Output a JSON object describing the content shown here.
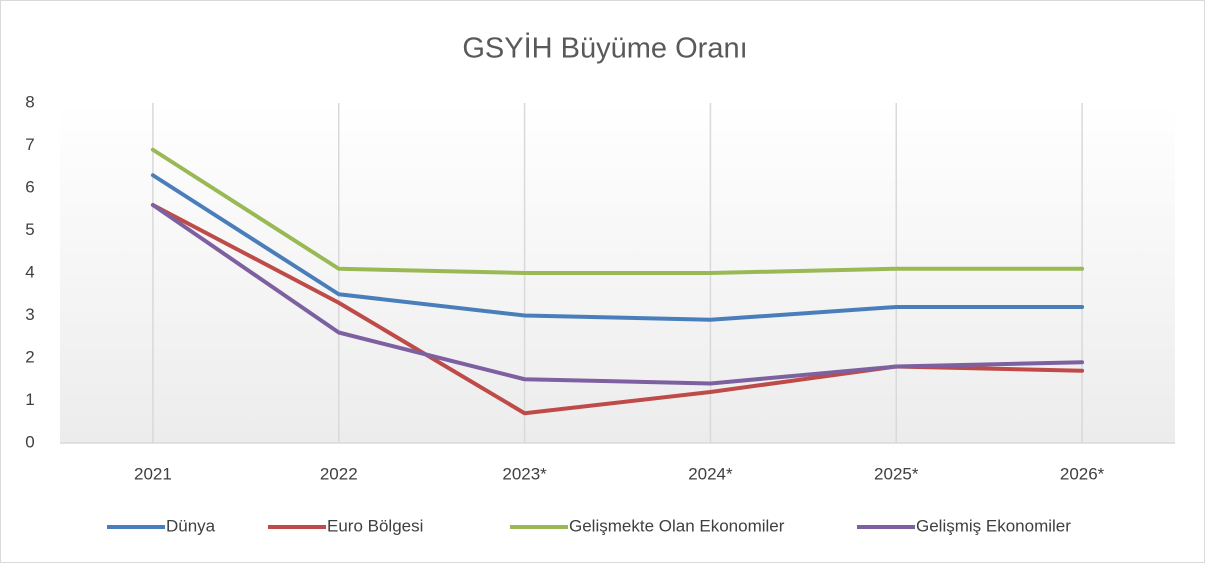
{
  "chart_data": {
    "type": "line",
    "title": "GSYİH Büyüme Oranı",
    "categories": [
      "2021",
      "2022",
      "2023*",
      "2024*",
      "2025*",
      "2026*"
    ],
    "series": [
      {
        "name": "Dünya",
        "color": "#4a7ebb",
        "values": [
          6.3,
          3.5,
          3.0,
          2.9,
          3.2,
          3.2
        ]
      },
      {
        "name": "Euro Bölgesi",
        "color": "#be4b48",
        "values": [
          5.6,
          3.3,
          0.7,
          1.2,
          1.8,
          1.7
        ]
      },
      {
        "name": "Gelişmekte Olan Ekonomiler",
        "color": "#98b954",
        "values": [
          6.9,
          4.1,
          4.0,
          4.0,
          4.1,
          4.1
        ]
      },
      {
        "name": "Gelişmiş Ekonomiler",
        "color": "#7d60a0",
        "values": [
          5.6,
          2.6,
          1.5,
          1.4,
          1.8,
          1.9
        ]
      }
    ],
    "ylim": [
      0,
      8
    ],
    "yticks": [
      0,
      1,
      2,
      3,
      4,
      5,
      6,
      7,
      8
    ],
    "grid": true,
    "legend": "bottom"
  }
}
